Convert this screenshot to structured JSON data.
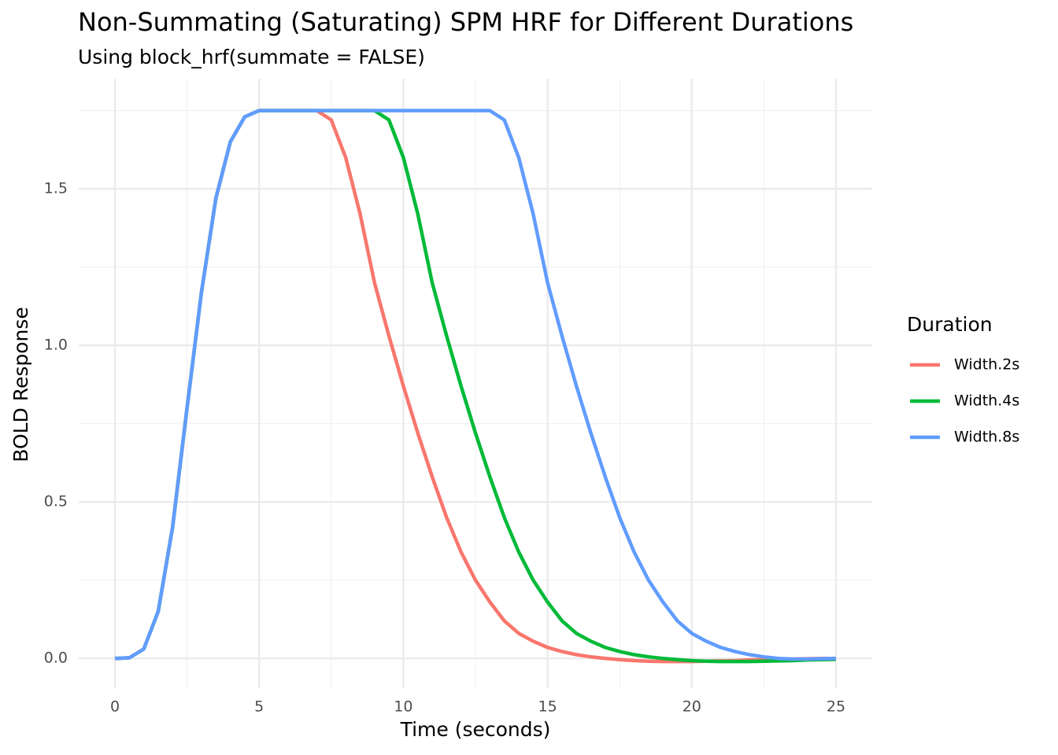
{
  "chart_data": {
    "type": "line",
    "title": "Non-Summating (Saturating) SPM HRF for Different Durations",
    "subtitle": "Using block_hrf(summate = FALSE)",
    "x_label": "Time (seconds)",
    "y_label": "BOLD Response",
    "legend_title": "Duration",
    "x": [
      0,
      0.5,
      1,
      1.5,
      2,
      2.5,
      3,
      3.5,
      4,
      4.5,
      5,
      5.5,
      6,
      6.5,
      7,
      7.5,
      8,
      8.5,
      9,
      9.5,
      10,
      10.5,
      11,
      11.5,
      12,
      12.5,
      13,
      13.5,
      14,
      14.5,
      15,
      15.5,
      16,
      16.5,
      17,
      17.5,
      18,
      18.5,
      19,
      19.5,
      20,
      20.5,
      21,
      21.5,
      22,
      22.5,
      23,
      23.5,
      24,
      24.5,
      25
    ],
    "series": [
      {
        "name": "Width.2s",
        "color": "#F8766D",
        "values": [
          0,
          0.002,
          0.03,
          0.15,
          0.42,
          0.8,
          1.17,
          1.47,
          1.65,
          1.73,
          1.75,
          1.75,
          1.75,
          1.75,
          1.75,
          1.72,
          1.6,
          1.42,
          1.2,
          1.03,
          0.87,
          0.72,
          0.58,
          0.45,
          0.34,
          0.25,
          0.18,
          0.12,
          0.08,
          0.055,
          0.035,
          0.022,
          0.012,
          0.005,
          0,
          -0.004,
          -0.007,
          -0.009,
          -0.01,
          -0.01,
          -0.01,
          -0.009,
          -0.008,
          -0.007,
          -0.005,
          -0.004,
          -0.003,
          -0.002,
          -0.001,
          0,
          0
        ]
      },
      {
        "name": "Width.4s",
        "color": "#00BA38",
        "values": [
          0,
          0.002,
          0.03,
          0.15,
          0.42,
          0.8,
          1.17,
          1.47,
          1.65,
          1.73,
          1.75,
          1.75,
          1.75,
          1.75,
          1.75,
          1.75,
          1.75,
          1.75,
          1.75,
          1.72,
          1.6,
          1.42,
          1.2,
          1.03,
          0.87,
          0.72,
          0.58,
          0.45,
          0.34,
          0.25,
          0.18,
          0.12,
          0.08,
          0.055,
          0.035,
          0.022,
          0.012,
          0.005,
          0,
          -0.004,
          -0.007,
          -0.009,
          -0.01,
          -0.01,
          -0.01,
          -0.009,
          -0.008,
          -0.007,
          -0.005,
          -0.004,
          -0.003
        ]
      },
      {
        "name": "Width.8s",
        "color": "#619CFF",
        "values": [
          0,
          0.002,
          0.03,
          0.15,
          0.42,
          0.8,
          1.17,
          1.47,
          1.65,
          1.73,
          1.75,
          1.75,
          1.75,
          1.75,
          1.75,
          1.75,
          1.75,
          1.75,
          1.75,
          1.75,
          1.75,
          1.75,
          1.75,
          1.75,
          1.75,
          1.75,
          1.75,
          1.72,
          1.6,
          1.42,
          1.2,
          1.03,
          0.87,
          0.72,
          0.58,
          0.45,
          0.34,
          0.25,
          0.18,
          0.12,
          0.08,
          0.055,
          0.035,
          0.022,
          0.012,
          0.005,
          0,
          -0.002,
          -0.002,
          -0.001,
          0
        ]
      }
    ],
    "xlim": [
      -1.256,
      26.256
    ],
    "ylim": [
      -0.095,
      1.852
    ],
    "xticks": [
      0,
      5,
      10,
      15,
      20,
      25
    ],
    "yticks": [
      {
        "value": 0,
        "label": "0.0"
      },
      {
        "value": 0.5,
        "label": "0.5"
      },
      {
        "value": 1,
        "label": "1.0"
      },
      {
        "value": 1.5,
        "label": "1.5"
      }
    ],
    "grid": true
  }
}
